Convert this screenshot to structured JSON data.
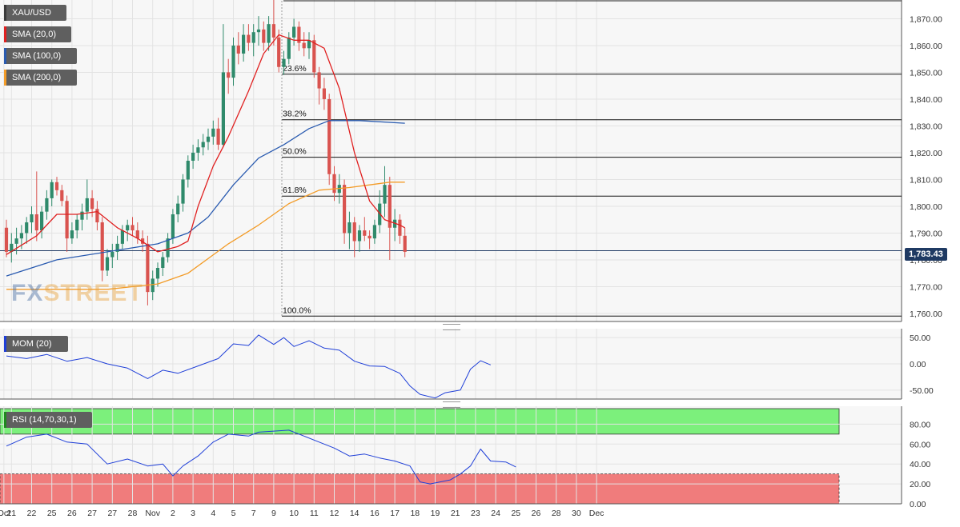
{
  "legends": {
    "symbol": "XAU/USD",
    "sma20": "SMA (20,0)",
    "sma100": "SMA (100,0)",
    "sma200": "SMA (200,0)",
    "mom": "MOM (20)",
    "rsi": "RSI (14,70,30,1)"
  },
  "colors": {
    "up": "#2f8a6b",
    "down": "#d9534f",
    "sma20": "#e02020",
    "sma100": "#2a5bb0",
    "sma200": "#f39c28",
    "mom": "#1f3fd8",
    "rsi": "#1f3fd8",
    "overbought": "#7cf07c",
    "oversold": "#f07c7c",
    "price_tag": "#1f3a63"
  },
  "watermark": {
    "part1": "FX",
    "part2": "STREET"
  },
  "current_price": "1,783.43",
  "chart_data": [
    {
      "type": "candlestick",
      "title": "XAU/USD",
      "ylim": [
        1757,
        1877
      ],
      "y_ticks": [
        "1,760.00",
        "1,770.00",
        "1,780.00",
        "1,790.00",
        "1,800.00",
        "1,810.00",
        "1,820.00",
        "1,830.00",
        "1,840.00",
        "1,850.00",
        "1,860.00",
        "1,870.00"
      ],
      "fib_levels": [
        {
          "label": "23.6%",
          "value": 1849.3
        },
        {
          "label": "38.2%",
          "value": 1832.3
        },
        {
          "label": "50.0%",
          "value": 1818.3
        },
        {
          "label": "61.8%",
          "value": 1803.8
        },
        {
          "label": "100.0%",
          "value": 1759.0
        }
      ],
      "current_price_line": 1783.43,
      "candles": [
        [
          1792,
          1795,
          1781,
          1783
        ],
        [
          1783,
          1790,
          1779,
          1786
        ],
        [
          1786,
          1792,
          1782,
          1788
        ],
        [
          1788,
          1793,
          1784,
          1790
        ],
        [
          1790,
          1796,
          1786,
          1794
        ],
        [
          1794,
          1800,
          1790,
          1797
        ],
        [
          1797,
          1813,
          1787,
          1791
        ],
        [
          1791,
          1800,
          1788,
          1798
        ],
        [
          1798,
          1806,
          1795,
          1803
        ],
        [
          1803,
          1810,
          1800,
          1809
        ],
        [
          1809,
          1811,
          1804,
          1806
        ],
        [
          1806,
          1808,
          1800,
          1802
        ],
        [
          1802,
          1804,
          1783,
          1788
        ],
        [
          1788,
          1794,
          1786,
          1791
        ],
        [
          1791,
          1797,
          1788,
          1795
        ],
        [
          1795,
          1801,
          1791,
          1798
        ],
        [
          1798,
          1810,
          1795,
          1803
        ],
        [
          1803,
          1806,
          1796,
          1799
        ],
        [
          1799,
          1802,
          1791,
          1794
        ],
        [
          1794,
          1796,
          1772,
          1776
        ],
        [
          1776,
          1784,
          1774,
          1781
        ],
        [
          1781,
          1786,
          1777,
          1783
        ],
        [
          1783,
          1789,
          1780,
          1786
        ],
        [
          1786,
          1793,
          1784,
          1791
        ],
        [
          1791,
          1795,
          1787,
          1793
        ],
        [
          1793,
          1796,
          1789,
          1791
        ],
        [
          1791,
          1794,
          1786,
          1788
        ],
        [
          1788,
          1791,
          1783,
          1786
        ],
        [
          1786,
          1789,
          1763,
          1768
        ],
        [
          1768,
          1776,
          1765,
          1773
        ],
        [
          1773,
          1779,
          1770,
          1777
        ],
        [
          1777,
          1783,
          1774,
          1781
        ],
        [
          1781,
          1790,
          1779,
          1788
        ],
        [
          1788,
          1799,
          1786,
          1797
        ],
        [
          1797,
          1804,
          1794,
          1801
        ],
        [
          1801,
          1812,
          1798,
          1810
        ],
        [
          1810,
          1819,
          1807,
          1817
        ],
        [
          1817,
          1823,
          1814,
          1820
        ],
        [
          1820,
          1825,
          1817,
          1822
        ],
        [
          1822,
          1827,
          1819,
          1824
        ],
        [
          1824,
          1829,
          1821,
          1826
        ],
        [
          1826,
          1832,
          1823,
          1829
        ],
        [
          1829,
          1833,
          1821,
          1823
        ],
        [
          1823,
          1868,
          1822,
          1850
        ],
        [
          1850,
          1855,
          1842,
          1848
        ],
        [
          1848,
          1863,
          1845,
          1860
        ],
        [
          1860,
          1865,
          1853,
          1857
        ],
        [
          1857,
          1868,
          1854,
          1864
        ],
        [
          1864,
          1868,
          1858,
          1861
        ],
        [
          1861,
          1868,
          1856,
          1865
        ],
        [
          1865,
          1871,
          1860,
          1866
        ],
        [
          1866,
          1869,
          1858,
          1861
        ],
        [
          1861,
          1871,
          1858,
          1868
        ],
        [
          1868,
          1877,
          1860,
          1863
        ],
        [
          1863,
          1866,
          1850,
          1852
        ],
        [
          1852,
          1858,
          1849,
          1855
        ],
        [
          1855,
          1865,
          1853,
          1863
        ],
        [
          1863,
          1870,
          1860,
          1867
        ],
        [
          1867,
          1869,
          1858,
          1861
        ],
        [
          1861,
          1865,
          1856,
          1859
        ],
        [
          1859,
          1865,
          1855,
          1862
        ],
        [
          1862,
          1864,
          1848,
          1850
        ],
        [
          1850,
          1852,
          1838,
          1844
        ],
        [
          1844,
          1848,
          1836,
          1840
        ],
        [
          1840,
          1842,
          1808,
          1812
        ],
        [
          1812,
          1815,
          1802,
          1805
        ],
        [
          1805,
          1812,
          1801,
          1808
        ],
        [
          1808,
          1810,
          1786,
          1790
        ],
        [
          1790,
          1798,
          1784,
          1794
        ],
        [
          1794,
          1796,
          1781,
          1787
        ],
        [
          1787,
          1793,
          1783,
          1791
        ],
        [
          1791,
          1796,
          1787,
          1789
        ],
        [
          1789,
          1791,
          1784,
          1788
        ],
        [
          1788,
          1795,
          1786,
          1793
        ],
        [
          1793,
          1806,
          1790,
          1801
        ],
        [
          1801,
          1815,
          1796,
          1808
        ],
        [
          1808,
          1811,
          1780,
          1792
        ],
        [
          1792,
          1799,
          1787,
          1795
        ],
        [
          1795,
          1797,
          1786,
          1789
        ],
        [
          1789,
          1792,
          1781,
          1783
        ]
      ],
      "sma20": [
        [
          0,
          1782
        ],
        [
          6,
          1789
        ],
        [
          10,
          1797
        ],
        [
          14,
          1797
        ],
        [
          18,
          1798
        ],
        [
          22,
          1792
        ],
        [
          26,
          1788
        ],
        [
          30,
          1783
        ],
        [
          34,
          1785
        ],
        [
          36,
          1787
        ],
        [
          38,
          1800
        ],
        [
          41,
          1815
        ],
        [
          44,
          1826
        ],
        [
          48,
          1843
        ],
        [
          51,
          1857
        ],
        [
          54,
          1864
        ],
        [
          57,
          1862
        ],
        [
          60,
          1862
        ],
        [
          63,
          1859
        ],
        [
          66,
          1844
        ],
        [
          69,
          1820
        ],
        [
          72,
          1802
        ],
        [
          75,
          1795
        ],
        [
          78,
          1793
        ],
        [
          79,
          1792
        ]
      ],
      "sma100": [
        [
          0,
          1774
        ],
        [
          10,
          1780
        ],
        [
          20,
          1783
        ],
        [
          30,
          1786
        ],
        [
          36,
          1790
        ],
        [
          40,
          1796
        ],
        [
          45,
          1808
        ],
        [
          50,
          1818
        ],
        [
          55,
          1823
        ],
        [
          60,
          1829
        ],
        [
          64,
          1832
        ],
        [
          70,
          1832
        ],
        [
          79,
          1831
        ]
      ],
      "sma200": [
        [
          0,
          1769
        ],
        [
          10,
          1769
        ],
        [
          20,
          1769
        ],
        [
          30,
          1771
        ],
        [
          36,
          1775
        ],
        [
          44,
          1786
        ],
        [
          50,
          1793
        ],
        [
          56,
          1801
        ],
        [
          62,
          1806
        ],
        [
          68,
          1807
        ],
        [
          72,
          1808
        ],
        [
          76,
          1809
        ],
        [
          79,
          1809
        ]
      ],
      "x_labels": [
        {
          "label": "Oct",
          "i": -0.5
        },
        {
          "label": "21",
          "i": 1
        },
        {
          "label": "22",
          "i": 5
        },
        {
          "label": "25",
          "i": 9
        },
        {
          "label": "26",
          "i": 13
        },
        {
          "label": "27",
          "i": 17
        },
        {
          "label": "27",
          "i": 21
        },
        {
          "label": "28",
          "i": 25
        },
        {
          "label": "Nov",
          "i": 29
        },
        {
          "label": "2",
          "i": 33
        },
        {
          "label": "3",
          "i": 37
        },
        {
          "label": "4",
          "i": 41
        },
        {
          "label": "5",
          "i": 45
        },
        {
          "label": "7",
          "i": 49
        },
        {
          "label": "9",
          "i": 53
        },
        {
          "label": "10",
          "i": 57
        },
        {
          "label": "11",
          "i": 61
        },
        {
          "label": "12",
          "i": 65
        },
        {
          "label": "14",
          "i": 69
        },
        {
          "label": "16",
          "i": 73
        },
        {
          "label": "17",
          "i": 77
        },
        {
          "label": "18",
          "i": 81
        },
        {
          "label": "19",
          "i": 85
        },
        {
          "label": "21",
          "i": 89
        },
        {
          "label": "23",
          "i": 93
        },
        {
          "label": "24",
          "i": 97
        },
        {
          "label": "25",
          "i": 101
        },
        {
          "label": "26",
          "i": 105
        },
        {
          "label": "28",
          "i": 109
        },
        {
          "label": "30",
          "i": 113
        },
        {
          "label": "Dec",
          "i": 117
        }
      ]
    },
    {
      "type": "line",
      "title": "MOM (20)",
      "ylim": [
        -67,
        67
      ],
      "y_ticks": [
        "50.00",
        "0.00",
        "-50.00"
      ],
      "values": [
        [
          0,
          15
        ],
        [
          4,
          10
        ],
        [
          8,
          18
        ],
        [
          12,
          5
        ],
        [
          16,
          12
        ],
        [
          20,
          0
        ],
        [
          24,
          -8
        ],
        [
          28,
          -28
        ],
        [
          31,
          -12
        ],
        [
          34,
          -18
        ],
        [
          38,
          -4
        ],
        [
          42,
          10
        ],
        [
          45,
          38
        ],
        [
          48,
          35
        ],
        [
          50,
          55
        ],
        [
          53,
          37
        ],
        [
          55,
          50
        ],
        [
          57,
          33
        ],
        [
          60,
          44
        ],
        [
          63,
          30
        ],
        [
          66,
          26
        ],
        [
          69,
          5
        ],
        [
          72,
          -4
        ],
        [
          75,
          -5
        ],
        [
          78,
          -18
        ],
        [
          80,
          -42
        ],
        [
          82,
          -58
        ],
        [
          85,
          -65
        ],
        [
          87,
          -55
        ],
        [
          90,
          -50
        ],
        [
          92,
          -10
        ],
        [
          94,
          6
        ],
        [
          96,
          -2
        ]
      ]
    },
    {
      "type": "line",
      "title": "RSI (14,70,30,1)",
      "ylim": [
        0,
        98
      ],
      "y_ticks": [
        "80.00",
        "60.00",
        "40.00",
        "20.00",
        "0.00"
      ],
      "levels": [
        70,
        30
      ],
      "values": [
        [
          0,
          58
        ],
        [
          4,
          67
        ],
        [
          8,
          70
        ],
        [
          12,
          62
        ],
        [
          16,
          60
        ],
        [
          20,
          40
        ],
        [
          24,
          45
        ],
        [
          28,
          38
        ],
        [
          31,
          40
        ],
        [
          33,
          28
        ],
        [
          35,
          38
        ],
        [
          38,
          48
        ],
        [
          41,
          62
        ],
        [
          44,
          70
        ],
        [
          48,
          68
        ],
        [
          50,
          72
        ],
        [
          53,
          73
        ],
        [
          56,
          74
        ],
        [
          59,
          68
        ],
        [
          62,
          62
        ],
        [
          65,
          56
        ],
        [
          68,
          48
        ],
        [
          71,
          50
        ],
        [
          74,
          46
        ],
        [
          77,
          43
        ],
        [
          80,
          38
        ],
        [
          82,
          22
        ],
        [
          84,
          20
        ],
        [
          86,
          22
        ],
        [
          88,
          24
        ],
        [
          90,
          30
        ],
        [
          92,
          38
        ],
        [
          94,
          55
        ],
        [
          96,
          43
        ],
        [
          99,
          42
        ],
        [
          101,
          37
        ]
      ]
    }
  ]
}
